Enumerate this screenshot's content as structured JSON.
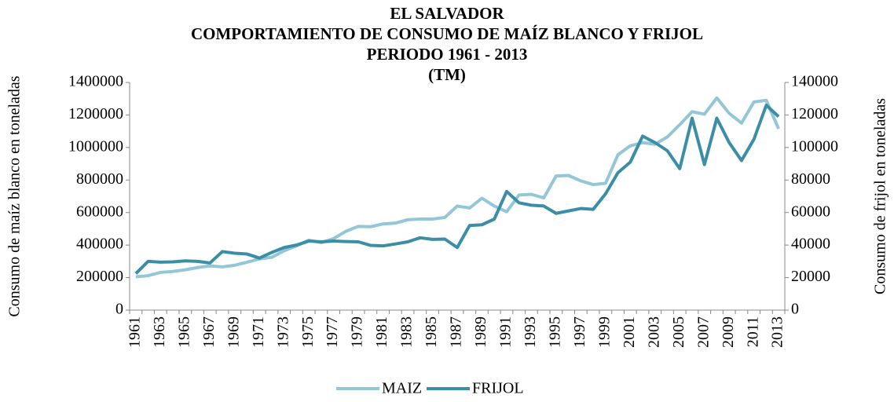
{
  "chart_data": {
    "type": "line",
    "title": [
      "EL SALVADOR",
      "COMPORTAMIENTO DE CONSUMO DE MAÍZ BLANCO Y FRIJOL",
      "PERIODO 1961 - 2013",
      "(TM)"
    ],
    "y_label": "Consumo de maíz blanco en toneladas",
    "y2_label": "Consumo de frijol en toneladas",
    "categories": [
      "1961",
      null,
      "1963",
      null,
      "1965",
      null,
      "1967",
      null,
      "1969",
      null,
      "1971",
      null,
      "1973",
      null,
      "1975",
      null,
      "1977",
      null,
      "1979",
      null,
      "1981",
      null,
      "1983",
      null,
      "1985",
      null,
      "1987",
      null,
      "1989",
      null,
      "1991",
      null,
      "1993",
      null,
      "1995",
      null,
      "1997",
      null,
      "1999",
      null,
      "2001",
      null,
      "2003",
      null,
      "2005",
      null,
      "2007",
      null,
      "2009",
      null,
      "2011",
      null,
      "2013"
    ],
    "series": [
      {
        "name": "MAIZ",
        "color": "#93c6d6",
        "values": [
          205000,
          212000,
          232000,
          238000,
          248000,
          262000,
          272000,
          266000,
          276000,
          295000,
          315000,
          325000,
          365000,
          395000,
          430000,
          415000,
          440000,
          485000,
          515000,
          513000,
          530000,
          535000,
          556000,
          560000,
          560000,
          570000,
          640000,
          628000,
          688000,
          640000,
          605000,
          708000,
          712000,
          690000,
          825000,
          828000,
          795000,
          772000,
          780000,
          955000,
          1010000,
          1030000,
          1020000,
          1065000,
          1140000,
          1220000,
          1205000,
          1305000,
          1210000,
          1150000,
          1280000,
          1290000,
          1115000
        ]
      },
      {
        "name": "FRIJOL",
        "color": "#3b8ea6",
        "axis": "y2",
        "values": [
          22500,
          30000,
          29500,
          29700,
          30300,
          30000,
          29000,
          36000,
          35000,
          34500,
          32000,
          35500,
          38500,
          40000,
          42500,
          42000,
          42500,
          42200,
          42000,
          39800,
          39500,
          40700,
          42000,
          44500,
          43500,
          43700,
          38500,
          52000,
          52500,
          56000,
          73000,
          66000,
          64500,
          64000,
          59500,
          61000,
          62500,
          62000,
          71500,
          84500,
          91000,
          107000,
          103000,
          98000,
          87000,
          118000,
          89500,
          118000,
          103000,
          92000,
          105000,
          126000,
          119000
        ]
      }
    ],
    "ylim": [
      0,
      1400000
    ],
    "yticks": [
      0,
      200000,
      400000,
      600000,
      800000,
      1000000,
      1200000,
      1400000
    ],
    "y2lim": [
      0,
      140000
    ],
    "y2ticks": [
      0,
      20000,
      40000,
      60000,
      80000,
      100000,
      120000,
      140000
    ],
    "grid": false,
    "legend": "bottom"
  }
}
